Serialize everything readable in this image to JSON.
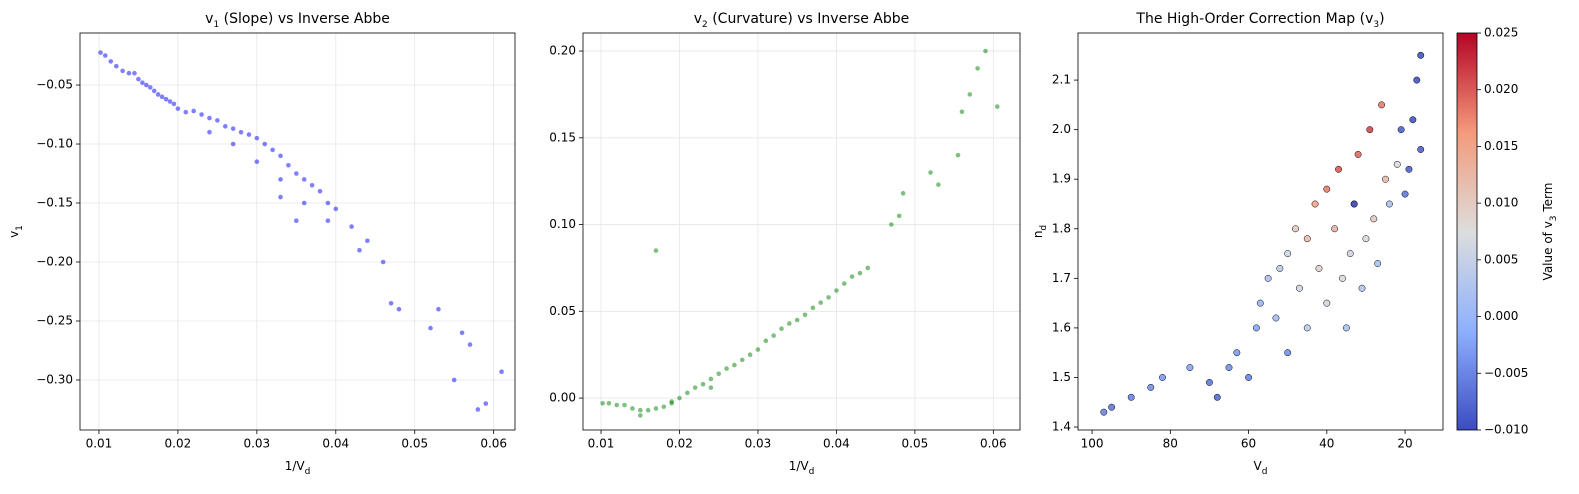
{
  "chart_data": [
    {
      "type": "scatter",
      "title": [
        "v",
        "1",
        " (Slope) vs Inverse Abbe"
      ],
      "x_label": [
        "1/V",
        "d"
      ],
      "y_label": [
        "v",
        "1"
      ],
      "color": "#0000ff",
      "alpha": 0.5,
      "grid": true,
      "xlim": [
        0.0076,
        0.0627
      ],
      "ylim": [
        -0.3424,
        -0.0059
      ],
      "xticks": [
        0.01,
        0.02,
        0.03,
        0.04,
        0.05,
        0.06
      ],
      "yticks": [
        {
          "value": -0.05,
          "label": "−0.05"
        },
        {
          "value": -0.1,
          "label": "−0.10"
        },
        {
          "value": -0.15,
          "label": "−0.15"
        },
        {
          "value": -0.2,
          "label": "−0.20"
        },
        {
          "value": -0.25,
          "label": "−0.25"
        },
        {
          "value": -0.3,
          "label": "−0.30"
        }
      ],
      "x": [
        0.0102,
        0.0108,
        0.0115,
        0.0122,
        0.013,
        0.0138,
        0.0145,
        0.015,
        0.0155,
        0.016,
        0.0165,
        0.017,
        0.0175,
        0.018,
        0.0185,
        0.019,
        0.0195,
        0.02,
        0.021,
        0.022,
        0.023,
        0.024,
        0.025,
        0.026,
        0.027,
        0.028,
        0.029,
        0.03,
        0.031,
        0.032,
        0.033,
        0.034,
        0.035,
        0.036,
        0.037,
        0.038,
        0.039,
        0.04,
        0.042,
        0.044,
        0.047,
        0.048,
        0.052,
        0.053,
        0.056,
        0.057,
        0.059,
        0.061,
        0.024,
        0.027,
        0.03,
        0.033,
        0.036,
        0.039,
        0.043,
        0.046,
        0.055,
        0.058,
        0.033,
        0.035
      ],
      "y": [
        -0.0225,
        -0.025,
        -0.03,
        -0.034,
        -0.038,
        -0.04,
        -0.04,
        -0.045,
        -0.048,
        -0.05,
        -0.052,
        -0.055,
        -0.058,
        -0.06,
        -0.062,
        -0.064,
        -0.066,
        -0.07,
        -0.073,
        -0.072,
        -0.075,
        -0.078,
        -0.08,
        -0.085,
        -0.087,
        -0.09,
        -0.092,
        -0.095,
        -0.1,
        -0.105,
        -0.11,
        -0.118,
        -0.125,
        -0.13,
        -0.135,
        -0.14,
        -0.15,
        -0.155,
        -0.17,
        -0.182,
        -0.235,
        -0.24,
        -0.256,
        -0.24,
        -0.26,
        -0.27,
        -0.32,
        -0.293,
        -0.09,
        -0.1,
        -0.115,
        -0.13,
        -0.15,
        -0.165,
        -0.19,
        -0.2,
        -0.3,
        -0.325,
        -0.145,
        -0.165
      ]
    },
    {
      "type": "scatter",
      "title": [
        "v",
        "2",
        " (Curvature) vs Inverse Abbe"
      ],
      "x_label": [
        "1/V",
        "d"
      ],
      "color": "#008000",
      "alpha": 0.5,
      "grid": true,
      "xlim": [
        0.0077,
        0.0634
      ],
      "ylim": [
        -0.0184,
        0.2104
      ],
      "xticks": [
        0.01,
        0.02,
        0.03,
        0.04,
        0.05,
        0.06
      ],
      "yticks": [
        {
          "value": 0,
          "label": "0.00"
        },
        {
          "value": 0.05,
          "label": "0.05"
        },
        {
          "value": 0.1,
          "label": "0.10"
        },
        {
          "value": 0.15,
          "label": "0.15"
        },
        {
          "value": 0.2,
          "label": "0.20"
        }
      ],
      "x": [
        0.0102,
        0.011,
        0.012,
        0.013,
        0.014,
        0.015,
        0.016,
        0.017,
        0.018,
        0.019,
        0.02,
        0.021,
        0.022,
        0.023,
        0.024,
        0.025,
        0.026,
        0.027,
        0.028,
        0.029,
        0.03,
        0.031,
        0.032,
        0.033,
        0.034,
        0.035,
        0.036,
        0.037,
        0.038,
        0.039,
        0.04,
        0.041,
        0.042,
        0.043,
        0.044,
        0.047,
        0.048,
        0.0485,
        0.052,
        0.053,
        0.0555,
        0.056,
        0.057,
        0.058,
        0.059,
        0.0605,
        0.017,
        0.015,
        0.019,
        0.024
      ],
      "y": [
        -0.003,
        -0.003,
        -0.004,
        -0.004,
        -0.006,
        -0.007,
        -0.007,
        -0.006,
        -0.005,
        -0.003,
        0,
        0.003,
        0.006,
        0.008,
        0.011,
        0.014,
        0.017,
        0.019,
        0.022,
        0.025,
        0.028,
        0.033,
        0.036,
        0.04,
        0.043,
        0.045,
        0.048,
        0.052,
        0.055,
        0.058,
        0.062,
        0.066,
        0.07,
        0.072,
        0.075,
        0.1,
        0.105,
        0.118,
        0.13,
        0.123,
        0.14,
        0.165,
        0.175,
        0.19,
        0.2,
        0.168,
        0.085,
        -0.01,
        -0.002,
        0.006
      ]
    },
    {
      "type": "colormap_scatter",
      "title": [
        "The High-Order Correction Map (v",
        "3",
        ")"
      ],
      "x_label": [
        "V",
        "d"
      ],
      "y_label": [
        "n",
        "d"
      ],
      "colorbar_label": [
        "Value of v",
        "3",
        " Term"
      ],
      "colormap": "coolwarm",
      "edgecolor": "#000000",
      "grid": false,
      "xlim": [
        103.6,
        10.3
      ],
      "ylim": [
        1.394,
        2.195
      ],
      "xticks": [
        100,
        80,
        60,
        40,
        20
      ],
      "yticks": [
        1.4,
        1.5,
        1.6,
        1.7,
        1.8,
        1.9,
        {
          "value": 2,
          "label": "2.0"
        },
        2.1
      ],
      "clim": [
        -0.01,
        0.025
      ],
      "cticks": [
        {
          "value": -0.01,
          "label": "−0.010"
        },
        {
          "value": -0.005,
          "label": "−0.005"
        },
        {
          "value": 0,
          "label": "0.000"
        },
        {
          "value": 0.005,
          "label": "0.005"
        },
        {
          "value": 0.01,
          "label": "0.010"
        },
        {
          "value": 0.015,
          "label": "0.015"
        },
        {
          "value": 0.02,
          "label": "0.020"
        },
        {
          "value": 0.025,
          "label": "0.025"
        }
      ],
      "x": [
        97,
        95,
        90,
        85,
        82,
        75,
        70,
        68,
        65,
        63,
        60,
        58,
        57,
        55,
        53,
        52,
        50,
        50,
        48,
        47,
        45,
        45,
        43,
        42,
        40,
        40,
        38,
        37,
        36,
        35,
        34,
        33,
        32,
        31,
        30,
        29,
        28,
        27,
        26,
        25,
        24,
        22,
        21,
        20,
        19,
        18,
        17,
        16,
        16,
        33
      ],
      "y": [
        1.43,
        1.44,
        1.46,
        1.48,
        1.5,
        1.52,
        1.49,
        1.46,
        1.52,
        1.55,
        1.5,
        1.6,
        1.65,
        1.7,
        1.62,
        1.72,
        1.55,
        1.75,
        1.8,
        1.68,
        1.6,
        1.78,
        1.85,
        1.72,
        1.88,
        1.65,
        1.8,
        1.92,
        1.7,
        1.6,
        1.75,
        1.85,
        1.95,
        1.68,
        1.78,
        2.0,
        1.82,
        1.73,
        2.05,
        1.9,
        1.85,
        1.93,
        2.0,
        1.87,
        1.92,
        2.02,
        2.1,
        2.15,
        1.96,
        1.85
      ],
      "c": [
        -0.005,
        -0.006,
        -0.005,
        -0.004,
        -0.003,
        -0.002,
        -0.006,
        -0.007,
        -0.004,
        -0.003,
        -0.005,
        -0.002,
        0,
        0.002,
        0.001,
        0.004,
        -0.004,
        0.006,
        0.01,
        0.006,
        0.004,
        0.012,
        0.015,
        0.009,
        0.018,
        0.006,
        0.013,
        0.02,
        0.008,
        0.002,
        0.006,
        0.016,
        0.019,
        0.003,
        0.008,
        0.021,
        0.01,
        0.002,
        0.018,
        0.012,
        0.002,
        0.007,
        -0.008,
        -0.006,
        -0.008,
        -0.009,
        -0.009,
        -0.009,
        -0.008,
        -0.01
      ]
    }
  ]
}
